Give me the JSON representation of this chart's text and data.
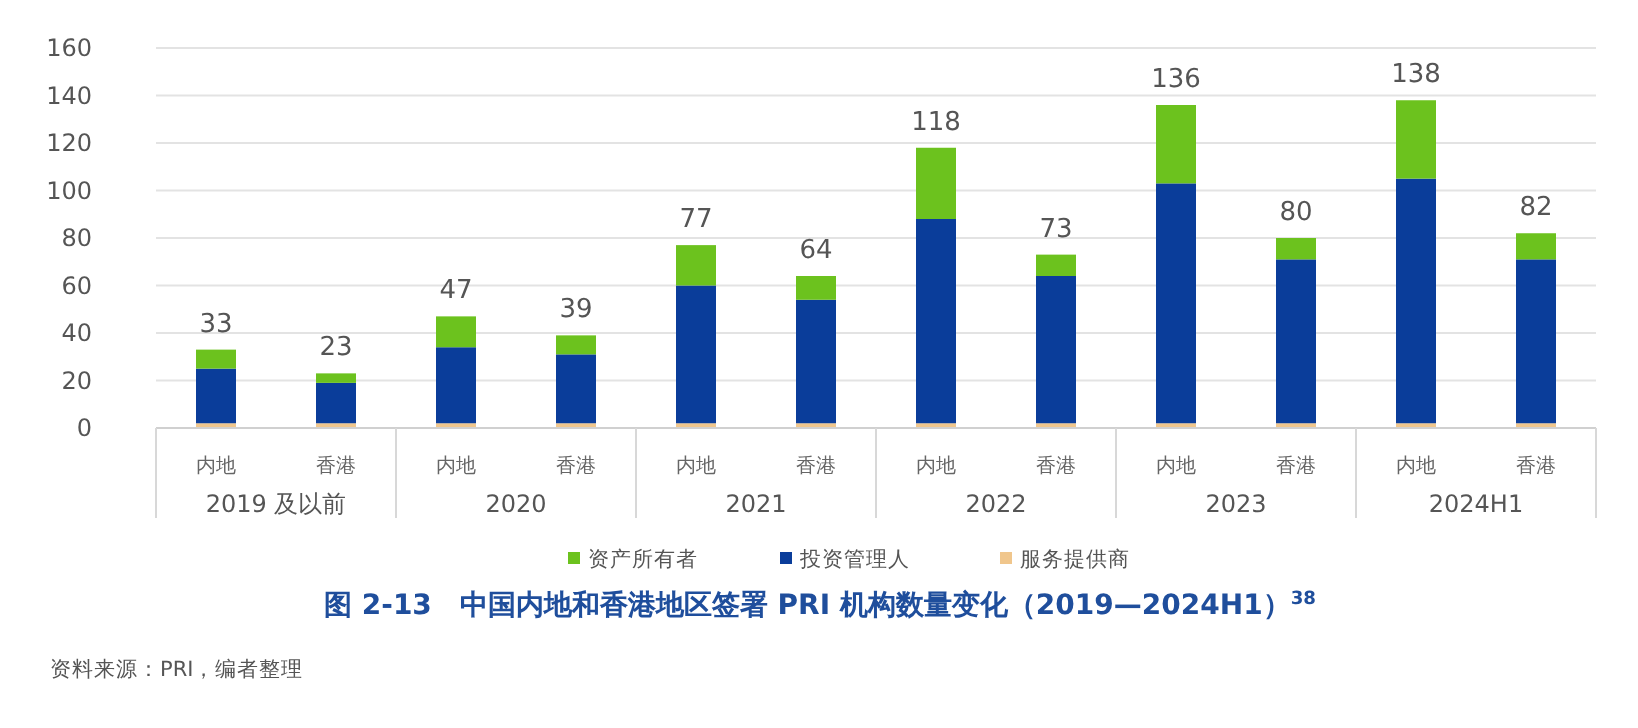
{
  "chart_data": {
    "type": "bar",
    "stacked": true,
    "title": "图 2-13　中国内地和香港地区签署 PRI 机构数量变化（2019—2024H1）$^{38}$",
    "categories": [
      "内地",
      "香港",
      "内地",
      "香港",
      "内地",
      "香港",
      "内地",
      "香港",
      "内地",
      "香港",
      "内地",
      "香港"
    ],
    "series": [
      {
        "name": "服务提供商",
        "color": "#f0c68c",
        "values": [
          2,
          2,
          2,
          2,
          2,
          2,
          2,
          2,
          2,
          2,
          2,
          2
        ]
      },
      {
        "name": "投资管理人",
        "color": "#0a3d9a",
        "values": [
          23,
          17,
          32,
          29,
          58,
          52,
          86,
          62,
          101,
          69,
          103,
          69
        ]
      },
      {
        "name": "资产所有者",
        "color": "#6cc21e",
        "values": [
          8,
          4,
          13,
          8,
          17,
          10,
          30,
          9,
          33,
          9,
          33,
          11
        ]
      }
    ],
    "totals": [
      "33",
      "23",
      "47",
      "39",
      "77",
      "64",
      "118",
      "73",
      "136",
      "80",
      "138",
      "82"
    ],
    "ylim": [
      0,
      160
    ],
    "yticks": [
      0,
      20,
      40,
      60,
      80,
      100,
      120,
      140,
      160
    ],
    "grid": "y",
    "legend": "bottom",
    "annotations": [
      "2019 及以前",
      "2020",
      "2021",
      "2022",
      "2023",
      "2024H1",
      "资料来源：PRI，编者整理"
    ]
  }
}
